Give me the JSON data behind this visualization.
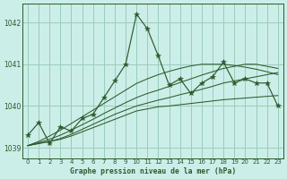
{
  "title": "Graphe pression niveau de la mer (hPa)",
  "bg_color": "#cceee8",
  "grid_color": "#99ccbb",
  "line_color": "#2d5a2d",
  "marker_color": "#2d5a2d",
  "hours": [
    0,
    1,
    2,
    3,
    4,
    5,
    6,
    7,
    8,
    9,
    10,
    11,
    12,
    13,
    14,
    15,
    16,
    17,
    18,
    19,
    20,
    21,
    22,
    23
  ],
  "pressure": [
    1039.3,
    1039.6,
    1039.1,
    1039.5,
    1039.4,
    1039.7,
    1039.8,
    1040.2,
    1040.6,
    1041.0,
    1042.2,
    1041.85,
    1041.2,
    1040.5,
    1040.65,
    1040.3,
    1040.55,
    1040.7,
    1041.05,
    1040.55,
    1040.65,
    1040.55,
    1040.55,
    1040.0
  ],
  "ylim": [
    1038.75,
    1042.45
  ],
  "yticks": [
    1039,
    1040,
    1041,
    1042
  ],
  "xlim": [
    -0.5,
    23.5
  ],
  "smooth_lines": [
    [
      1039.05,
      1039.1,
      1039.15,
      1039.2,
      1039.28,
      1039.38,
      1039.48,
      1039.58,
      1039.68,
      1039.78,
      1039.88,
      1039.93,
      1039.98,
      1040.0,
      1040.03,
      1040.06,
      1040.09,
      1040.12,
      1040.15,
      1040.17,
      1040.19,
      1040.21,
      1040.23,
      1040.25
    ],
    [
      1039.05,
      1039.1,
      1039.15,
      1039.22,
      1039.32,
      1039.44,
      1039.56,
      1039.68,
      1039.8,
      1039.9,
      1040.0,
      1040.07,
      1040.14,
      1040.2,
      1040.27,
      1040.33,
      1040.4,
      1040.47,
      1040.55,
      1040.6,
      1040.65,
      1040.7,
      1040.75,
      1040.8
    ],
    [
      1039.05,
      1039.12,
      1039.2,
      1039.3,
      1039.42,
      1039.55,
      1039.68,
      1039.82,
      1039.95,
      1040.08,
      1040.2,
      1040.3,
      1040.38,
      1040.47,
      1040.56,
      1040.65,
      1040.74,
      1040.82,
      1040.9,
      1040.95,
      1041.0,
      1041.0,
      1040.95,
      1040.9
    ],
    [
      1039.05,
      1039.15,
      1039.28,
      1039.42,
      1039.58,
      1039.74,
      1039.9,
      1040.06,
      1040.22,
      1040.38,
      1040.54,
      1040.65,
      1040.75,
      1040.83,
      1040.9,
      1040.96,
      1041.0,
      1041.0,
      1041.0,
      1040.97,
      1040.93,
      1040.88,
      1040.82,
      1040.75
    ]
  ]
}
